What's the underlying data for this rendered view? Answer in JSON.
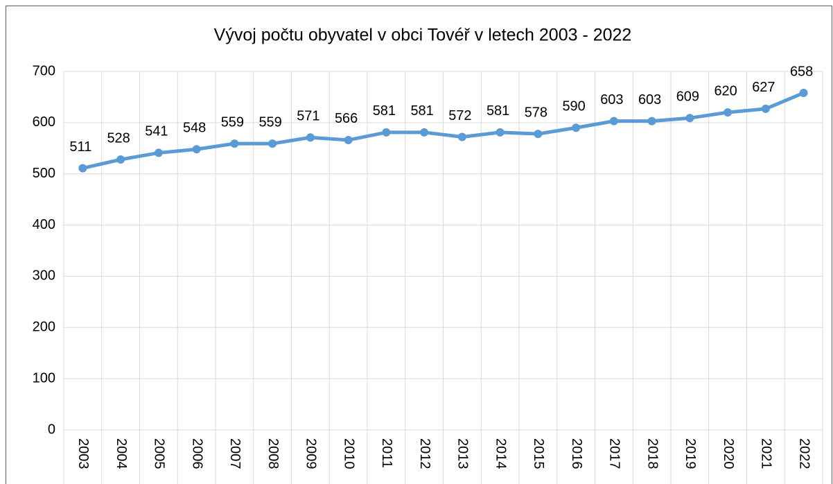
{
  "chart_data": {
    "type": "line",
    "title": "Vývoj počtu obyvatel v obci Tovéř v letech 2003 - 2022",
    "categories": [
      "2003",
      "2004",
      "2005",
      "2006",
      "2007",
      "2008",
      "2009",
      "2010",
      "2011",
      "2012",
      "2013",
      "2014",
      "2015",
      "2016",
      "2017",
      "2018",
      "2019",
      "2020",
      "2021",
      "2022"
    ],
    "values": [
      511,
      528,
      541,
      548,
      559,
      559,
      571,
      566,
      581,
      581,
      572,
      581,
      578,
      590,
      603,
      603,
      609,
      620,
      627,
      658
    ],
    "color": "#5b9bd5",
    "ylim": [
      0,
      700
    ],
    "yticks": [
      0,
      100,
      200,
      300,
      400,
      500,
      600,
      700
    ],
    "grid": true
  }
}
